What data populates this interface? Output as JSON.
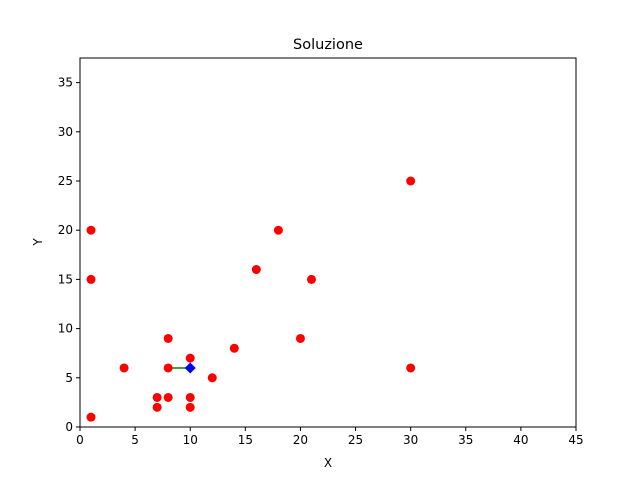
{
  "chart_data": {
    "type": "scatter",
    "title": "Soluzione",
    "xlabel": "X",
    "ylabel": "Y",
    "xlim": [
      0,
      45
    ],
    "ylim": [
      0,
      37.5
    ],
    "xticks": [
      0,
      5,
      10,
      15,
      20,
      25,
      30,
      35,
      40,
      45
    ],
    "yticks": [
      0,
      5,
      10,
      15,
      20,
      25,
      30,
      35
    ],
    "grid": false,
    "series": [
      {
        "marker": "circle",
        "color": "#ff0000",
        "points": [
          {
            "x": 1,
            "y": 20
          },
          {
            "x": 1,
            "y": 15
          },
          {
            "x": 1,
            "y": 1
          },
          {
            "x": 4,
            "y": 6
          },
          {
            "x": 7,
            "y": 3
          },
          {
            "x": 7,
            "y": 2
          },
          {
            "x": 8,
            "y": 9
          },
          {
            "x": 8,
            "y": 6
          },
          {
            "x": 8,
            "y": 3
          },
          {
            "x": 10,
            "y": 7
          },
          {
            "x": 10,
            "y": 3
          },
          {
            "x": 10,
            "y": 2
          },
          {
            "x": 12,
            "y": 5
          },
          {
            "x": 14,
            "y": 8
          },
          {
            "x": 16,
            "y": 16
          },
          {
            "x": 18,
            "y": 20
          },
          {
            "x": 20,
            "y": 9
          },
          {
            "x": 21,
            "y": 15
          },
          {
            "x": 30,
            "y": 25
          },
          {
            "x": 30,
            "y": 6
          }
        ]
      },
      {
        "marker": "diamond",
        "color": "#0000ff",
        "points": [
          {
            "x": 10,
            "y": 6
          }
        ]
      }
    ],
    "connections": [
      {
        "from": {
          "x": 8,
          "y": 6
        },
        "to": {
          "x": 10,
          "y": 6
        },
        "color": "#008000"
      }
    ]
  }
}
